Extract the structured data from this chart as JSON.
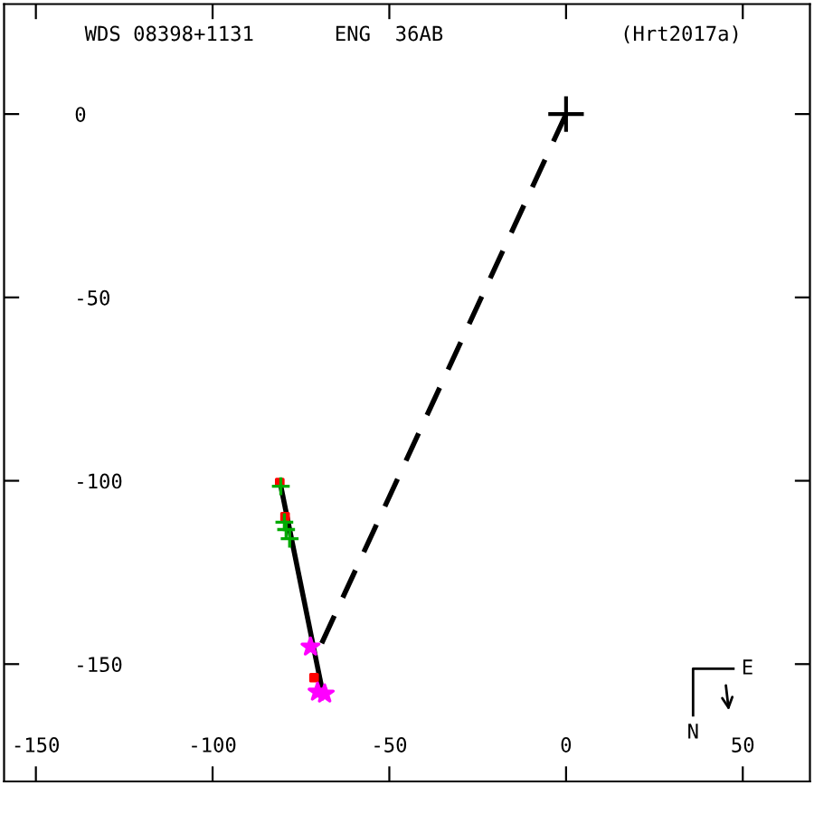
{
  "chart_data": {
    "type": "scatter",
    "annotations": [
      "WDS 08398+1131",
      "ENG  36AB",
      "(Hrt2017a)",
      "N",
      "E"
    ],
    "xlim": [
      -159,
      69
    ],
    "ylim": [
      -182,
      30
    ],
    "xticks": [
      -150,
      -100,
      -50,
      0,
      50
    ],
    "yticks": [
      0,
      -50,
      -100,
      -150
    ],
    "grid": false,
    "series": [
      {
        "type": "line",
        "color": "#000000",
        "line_style": "dashed",
        "marker": "none",
        "x": [
          0,
          -70.8
        ],
        "values": [
          0,
          -147.8
        ]
      },
      {
        "type": "line",
        "color": "#000000",
        "line_style": "solid",
        "marker": "none",
        "x": [
          -81,
          -69
        ],
        "values": [
          -100,
          -157
        ]
      },
      {
        "color": "#00aa00",
        "marker": "cross",
        "x": [
          -80.7,
          -79.7,
          -79.2,
          -78.2
        ],
        "values": [
          -101.5,
          -111.3,
          -113.3,
          -115.8
        ]
      },
      {
        "color": "#ff0000",
        "marker": "square",
        "x": [
          -81,
          -79.5,
          -71.3
        ],
        "values": [
          -100.5,
          -109.8,
          -153.7
        ]
      },
      {
        "color": "#ff00ff",
        "marker": "star",
        "x": [
          -72.3,
          -70.3,
          -68.3
        ],
        "values": [
          -145.3,
          -157.6,
          -158.1
        ]
      },
      {
        "color": "#000000",
        "marker": "cross",
        "x": [
          0
        ],
        "values": [
          0
        ]
      }
    ]
  }
}
